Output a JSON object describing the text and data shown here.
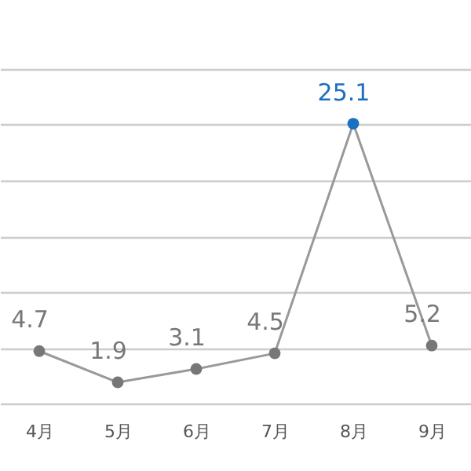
{
  "chart_data": {
    "type": "line",
    "categories": [
      "4月",
      "5月",
      "6月",
      "7月",
      "8月",
      "9月"
    ],
    "series": [
      {
        "color": "#999999",
        "colors": [
          "#777777",
          "#777777",
          "#777777",
          "#777777",
          "#1a6fc0",
          "#777777"
        ],
        "values": [
          4.7,
          1.9,
          3.1,
          4.5,
          25.1,
          5.2
        ]
      }
    ],
    "ylim": [
      0,
      30
    ],
    "yticks": [
      {
        "value": 0,
        "label": null
      },
      {
        "value": 5,
        "label": null
      },
      {
        "value": 10,
        "label": null
      },
      {
        "value": 15,
        "label": null
      },
      {
        "value": 20,
        "label": null
      },
      {
        "value": 25,
        "label": null
      },
      {
        "value": 30,
        "label": null
      }
    ],
    "grid": "y",
    "marker": "circle",
    "data_labels": true,
    "tick_labels": "x"
  }
}
